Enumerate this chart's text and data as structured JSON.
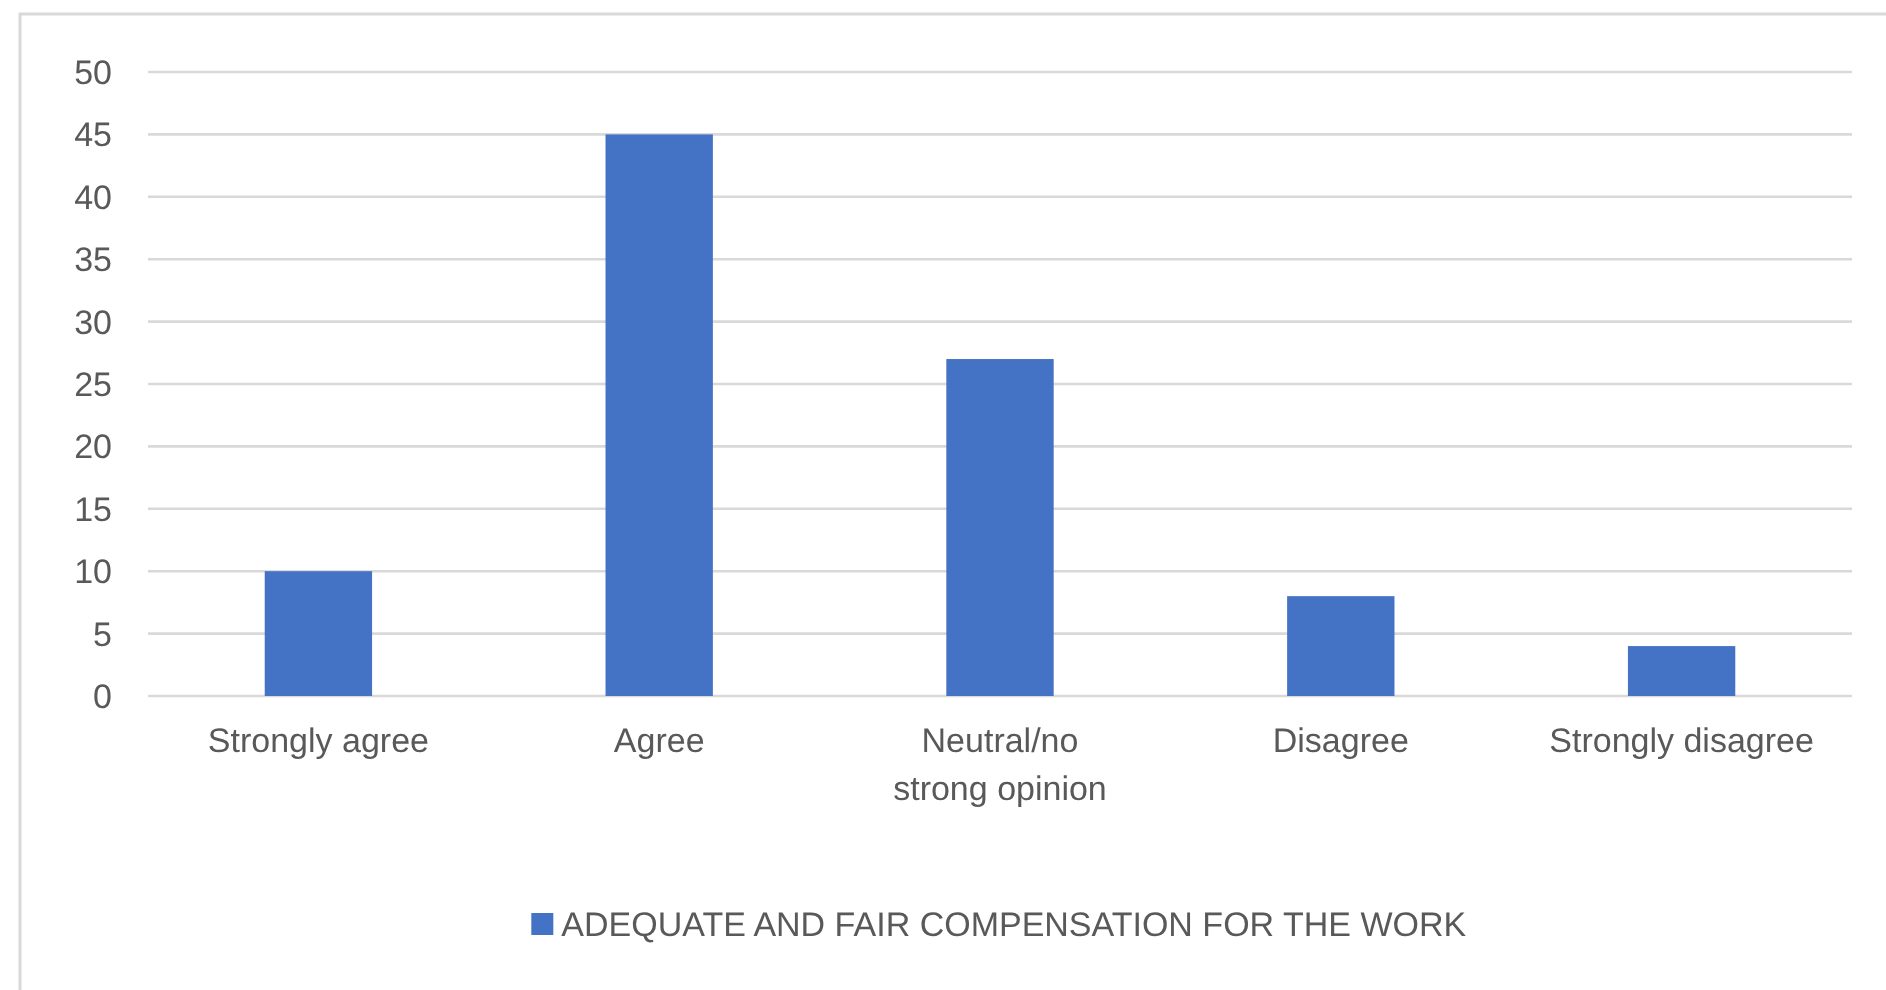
{
  "chart_data": {
    "type": "bar",
    "categories": [
      "Strongly agree",
      "Agree",
      "Neutral/no strong opinion",
      "Disagree",
      "Strongly disagree"
    ],
    "series": [
      {
        "name": "ADEQUATE AND FAIR COMPENSATION FOR THE WORK",
        "color": "#4472c4",
        "values": [
          10,
          45,
          27,
          8,
          4
        ]
      }
    ],
    "ylim": [
      0,
      50
    ],
    "yticks": [
      0,
      5,
      10,
      15,
      20,
      25,
      30,
      35,
      40,
      45,
      50
    ],
    "grid": "y",
    "legend": "bottom"
  }
}
